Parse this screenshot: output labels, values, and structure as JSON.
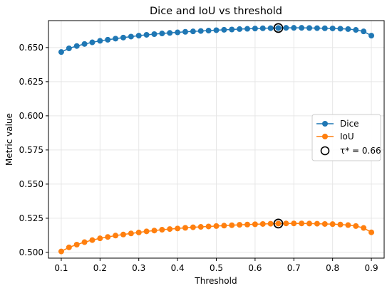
{
  "chart_data": {
    "type": "line",
    "title": "Dice and IoU vs threshold",
    "xlabel": "Threshold",
    "ylabel": "Metric value",
    "xlim": [
      0.067,
      0.933
    ],
    "ylim": [
      0.4958,
      0.6697
    ],
    "xticks": [
      0.1,
      0.2,
      0.3,
      0.4,
      0.5,
      0.6,
      0.7,
      0.8,
      0.9
    ],
    "xtick_labels": [
      "0.1",
      "0.2",
      "0.3",
      "0.4",
      "0.5",
      "0.6",
      "0.7",
      "0.8",
      "0.9"
    ],
    "yticks": [
      0.5,
      0.525,
      0.55,
      0.575,
      0.6,
      0.625,
      0.65
    ],
    "ytick_labels": [
      "0.500",
      "0.525",
      "0.550",
      "0.575",
      "0.600",
      "0.625",
      "0.650"
    ],
    "grid": true,
    "legend_position": "center-right",
    "x": [
      0.1,
      0.12,
      0.14,
      0.16,
      0.18,
      0.2,
      0.22,
      0.24,
      0.26,
      0.28,
      0.3,
      0.32,
      0.34,
      0.36,
      0.38,
      0.4,
      0.42,
      0.44,
      0.46,
      0.48,
      0.5,
      0.52,
      0.54,
      0.56,
      0.58,
      0.6,
      0.62,
      0.64,
      0.66,
      0.68,
      0.7,
      0.72,
      0.74,
      0.76,
      0.78,
      0.8,
      0.82,
      0.84,
      0.86,
      0.88,
      0.9
    ],
    "series": [
      {
        "name": "Dice",
        "color": "#1f77b4",
        "values": [
          0.6467,
          0.6494,
          0.6511,
          0.6526,
          0.6538,
          0.6549,
          0.6557,
          0.6565,
          0.6573,
          0.658,
          0.6587,
          0.6593,
          0.6598,
          0.6603,
          0.6607,
          0.6611,
          0.6615,
          0.6618,
          0.6621,
          0.6624,
          0.6627,
          0.663,
          0.6632,
          0.6635,
          0.6637,
          0.6639,
          0.6641,
          0.6642,
          0.6643,
          0.6644,
          0.6644,
          0.6644,
          0.6643,
          0.6642,
          0.6641,
          0.664,
          0.6638,
          0.6635,
          0.6629,
          0.6618,
          0.6587
        ]
      },
      {
        "name": "IoU",
        "color": "#ff7f0e",
        "values": [
          0.5007,
          0.5037,
          0.5057,
          0.5075,
          0.509,
          0.5103,
          0.5113,
          0.5123,
          0.5131,
          0.5139,
          0.5146,
          0.5154,
          0.516,
          0.5166,
          0.5171,
          0.5175,
          0.518,
          0.5184,
          0.5187,
          0.519,
          0.5193,
          0.5196,
          0.5199,
          0.5202,
          0.5204,
          0.5206,
          0.5208,
          0.521,
          0.5211,
          0.5212,
          0.5212,
          0.5212,
          0.5211,
          0.521,
          0.5208,
          0.5207,
          0.5204,
          0.52,
          0.5193,
          0.5179,
          0.5147
        ]
      }
    ],
    "optimum": {
      "label": "τ* = 0.66",
      "x": 0.66,
      "dice": 0.6643,
      "iou": 0.5211
    }
  }
}
